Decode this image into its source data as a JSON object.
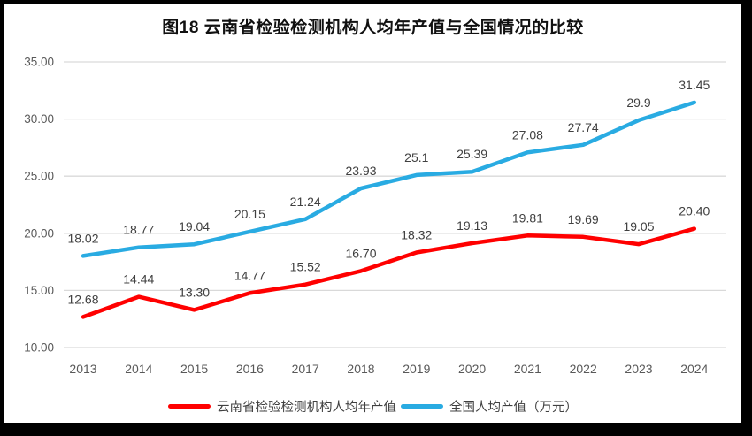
{
  "title": "图18  云南省检验检测机构人均年产值与全国情况的比较",
  "chart_data": {
    "type": "line",
    "title": "图18  云南省检验检测机构人均年产值与全国情况的比较",
    "categories": [
      "2013",
      "2014",
      "2015",
      "2016",
      "2017",
      "2018",
      "2019",
      "2020",
      "2021",
      "2022",
      "2023",
      "2024"
    ],
    "series": [
      {
        "name": "云南省检验检测机构人均年产值",
        "color": "#ff0000",
        "values": [
          12.68,
          14.44,
          13.3,
          14.77,
          15.52,
          16.7,
          18.32,
          19.13,
          19.81,
          19.69,
          19.05,
          20.4
        ],
        "labels": [
          "12.68",
          "14.44",
          "13.30",
          "14.77",
          "15.52",
          "16.70",
          "18.32",
          "19.13",
          "19.81",
          "19.69",
          "19.05",
          "20.40"
        ]
      },
      {
        "name": "全国人均产值（万元）",
        "color": "#29abe2",
        "values": [
          18.02,
          18.77,
          19.04,
          20.15,
          21.24,
          23.93,
          25.1,
          25.39,
          27.08,
          27.74,
          29.9,
          31.45
        ],
        "labels": [
          "18.02",
          "18.77",
          "19.04",
          "20.15",
          "21.24",
          "23.93",
          "25.1",
          "25.39",
          "27.08",
          "27.74",
          "29.9",
          "31.45"
        ]
      }
    ],
    "xlabel": "",
    "ylabel": "",
    "ylim": [
      10,
      35
    ],
    "yticks": [
      "10.00",
      "15.00",
      "20.00",
      "25.00",
      "30.00",
      "35.00"
    ],
    "grid": true,
    "legend_position": "bottom"
  },
  "colors": {
    "yunnan_line": "#ff0000",
    "national_line": "#29abe2",
    "gridline": "#d9d9d9",
    "axis_label": "#595959",
    "data_label": "#404040",
    "frame": "#000000",
    "background": "#ffffff"
  }
}
